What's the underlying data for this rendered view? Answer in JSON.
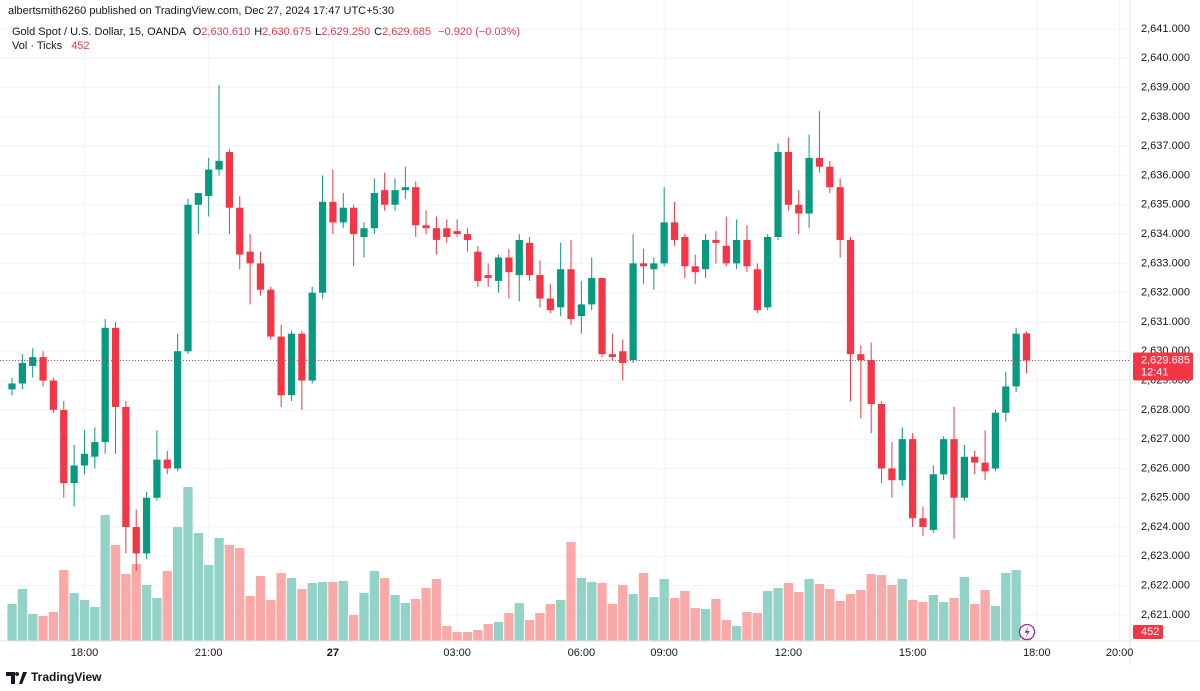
{
  "header": {
    "text": "albertsmith6260 published on TradingView.com, Dec 27, 2024 17:47 UTC+5:30"
  },
  "footer": {
    "brand": "TradingView"
  },
  "chart_data": {
    "type": "candlestick",
    "symbol": "Gold Spot / U.S. Dollar, 15, OANDA",
    "legend": [
      {
        "key": "O",
        "value": "2,630.610"
      },
      {
        "key": "H",
        "value": "2,630.675"
      },
      {
        "key": "L",
        "value": "2,629.250"
      },
      {
        "key": "C",
        "value": "2,629.685"
      }
    ],
    "change": "−0.920 (−0.03%)",
    "volume_title": "Vol · Ticks",
    "up_color": "#089981",
    "down_color": "#f23645",
    "volume_up_color": "#92d2c7",
    "volume_down_color": "#f8a9a8",
    "open": [
      2628.7,
      2628.9,
      2629.5,
      2629.8,
      2629.0,
      2628.0,
      2625.5,
      2626.1,
      2626.4,
      2626.9,
      2630.8,
      2628.1,
      2624.0,
      2623.1,
      2625.0,
      2626.3,
      2626.0,
      2630.0,
      2635.0,
      2635.3,
      2636.2,
      2636.8,
      2634.9,
      2633.4,
      2633.0,
      2632.1,
      2630.5,
      2628.5,
      2630.6,
      2629.0,
      2632.0,
      2635.1,
      2634.4,
      2634.9,
      2633.9,
      2634.2,
      2635.5,
      2635.0,
      2635.5,
      2635.6,
      2634.3,
      2634.2,
      2634.2,
      2634.1,
      2634.0,
      2633.4,
      2632.6,
      2632.4,
      2633.2,
      2632.6,
      2633.7,
      2632.6,
      2631.8,
      2631.5,
      2632.8,
      2631.2,
      2631.6,
      2632.5,
      2629.9,
      2630.0,
      2629.7,
      2633.0,
      2632.8,
      2633.0,
      2634.4,
      2633.9,
      2632.9,
      2632.8,
      2633.8,
      2633.6,
      2633.0,
      2633.8,
      2632.8,
      2631.5,
      2633.9,
      2636.8,
      2635.0,
      2634.7,
      2636.6,
      2636.3,
      2635.6,
      2633.8,
      2629.9,
      2629.7,
      2628.2,
      2626.0,
      2625.6,
      2627.0,
      2624.3,
      2623.9,
      2625.8,
      2627.0,
      2625.0,
      2626.4,
      2626.2,
      2626.0,
      2627.9,
      2628.8,
      2630.61
    ],
    "high": [
      2629.1,
      2629.9,
      2630.1,
      2630.0,
      2629.1,
      2628.3,
      2626.8,
      2627.3,
      2627.4,
      2631.1,
      2631.0,
      2628.3,
      2624.6,
      2625.2,
      2627.3,
      2626.6,
      2630.6,
      2635.2,
      2635.4,
      2636.6,
      2639.1,
      2636.9,
      2635.3,
      2634.0,
      2633.4,
      2632.2,
      2630.9,
      2630.7,
      2630.7,
      2632.2,
      2636.0,
      2636.2,
      2635.4,
      2635.0,
      2634.4,
      2635.9,
      2636.1,
      2635.9,
      2636.3,
      2635.8,
      2634.8,
      2634.6,
      2634.5,
      2634.5,
      2634.2,
      2633.6,
      2633.0,
      2633.3,
      2633.5,
      2634.0,
      2633.9,
      2633.1,
      2632.3,
      2633.7,
      2633.8,
      2632.4,
      2633.2,
      2632.5,
      2630.6,
      2630.4,
      2634.0,
      2633.5,
      2633.2,
      2635.6,
      2635.1,
      2634.0,
      2633.3,
      2634.0,
      2634.1,
      2634.6,
      2634.5,
      2634.3,
      2633.0,
      2634.0,
      2637.1,
      2637.3,
      2635.5,
      2637.4,
      2638.2,
      2636.5,
      2635.9,
      2633.9,
      2630.2,
      2630.3,
      2628.3,
      2626.9,
      2627.4,
      2627.2,
      2624.7,
      2626.1,
      2627.1,
      2628.1,
      2626.8,
      2626.6,
      2627.3,
      2628.0,
      2629.3,
      2630.8,
      2630.675
    ],
    "low": [
      2628.5,
      2628.7,
      2629.1,
      2628.8,
      2627.9,
      2625.0,
      2624.7,
      2625.8,
      2626.0,
      2626.5,
      2626.5,
      2623.1,
      2622.5,
      2622.9,
      2624.9,
      2625.8,
      2625.9,
      2629.9,
      2634.0,
      2634.6,
      2636.0,
      2634.0,
      2632.8,
      2631.6,
      2631.9,
      2630.4,
      2628.1,
      2628.3,
      2628.0,
      2628.9,
      2631.8,
      2634.0,
      2634.2,
      2632.9,
      2633.2,
      2634.0,
      2634.8,
      2634.8,
      2635.2,
      2633.9,
      2634.0,
      2633.3,
      2633.7,
      2633.9,
      2633.4,
      2632.2,
      2632.2,
      2632.0,
      2631.8,
      2631.7,
      2632.4,
      2631.5,
      2631.3,
      2631.2,
      2630.9,
      2630.6,
      2631.4,
      2629.8,
      2629.7,
      2629.0,
      2629.6,
      2632.3,
      2632.1,
      2632.9,
      2633.6,
      2632.5,
      2632.3,
      2632.5,
      2633.0,
      2632.9,
      2632.8,
      2632.7,
      2631.3,
      2631.4,
      2633.8,
      2634.8,
      2634.0,
      2634.2,
      2636.1,
      2635.4,
      2633.2,
      2628.3,
      2627.7,
      2627.2,
      2625.5,
      2625.0,
      2625.4,
      2624.0,
      2623.7,
      2623.8,
      2625.6,
      2623.6,
      2624.9,
      2625.8,
      2625.6,
      2625.9,
      2627.6,
      2628.6,
      2629.25
    ],
    "close": [
      2628.9,
      2629.6,
      2629.8,
      2629.0,
      2628.0,
      2625.5,
      2626.1,
      2626.5,
      2626.9,
      2630.8,
      2628.1,
      2624.0,
      2623.1,
      2625.0,
      2626.3,
      2626.0,
      2630.0,
      2635.0,
      2635.4,
      2636.2,
      2636.5,
      2634.9,
      2633.3,
      2633.0,
      2632.1,
      2630.5,
      2628.5,
      2630.6,
      2629.0,
      2632.0,
      2635.1,
      2634.4,
      2634.9,
      2634.0,
      2634.2,
      2635.4,
      2635.0,
      2635.5,
      2635.6,
      2634.3,
      2634.2,
      2633.8,
      2633.9,
      2634.0,
      2633.8,
      2632.4,
      2632.5,
      2633.2,
      2632.7,
      2633.8,
      2632.6,
      2631.8,
      2631.4,
      2632.8,
      2631.1,
      2631.6,
      2632.5,
      2629.9,
      2629.8,
      2629.6,
      2633.0,
      2632.9,
      2633.0,
      2634.4,
      2633.8,
      2632.9,
      2632.7,
      2633.8,
      2633.7,
      2633.0,
      2633.8,
      2632.9,
      2631.4,
      2633.9,
      2636.8,
      2635.0,
      2634.7,
      2636.6,
      2636.3,
      2635.6,
      2633.8,
      2629.9,
      2629.7,
      2628.2,
      2626.0,
      2625.6,
      2627.0,
      2624.3,
      2624.0,
      2625.8,
      2627.0,
      2625.0,
      2626.4,
      2626.2,
      2625.9,
      2627.9,
      2628.8,
      2630.6,
      2629.685
    ],
    "volume": [
      1850,
      2600,
      1350,
      1250,
      1450,
      3550,
      2400,
      2050,
      1700,
      6300,
      4800,
      3350,
      3850,
      2800,
      2150,
      3500,
      5700,
      7700,
      5400,
      3800,
      5150,
      4800,
      4650,
      2250,
      3250,
      2050,
      3400,
      3150,
      2600,
      2900,
      2950,
      2950,
      3000,
      1300,
      2400,
      3500,
      3150,
      2300,
      1900,
      2100,
      2650,
      3100,
      750,
      450,
      450,
      550,
      850,
      950,
      1400,
      1900,
      1050,
      1400,
      1850,
      2050,
      4950,
      3150,
      2950,
      2900,
      1850,
      2800,
      2350,
      3400,
      2200,
      3100,
      2150,
      2500,
      1650,
      1600,
      2100,
      1050,
      750,
      1450,
      1400,
      2500,
      2650,
      2900,
      2450,
      3100,
      2850,
      2600,
      2000,
      2350,
      2550,
      3350,
      3300,
      2800,
      3100,
      2050,
      1950,
      2300,
      1950,
      2150,
      3200,
      1850,
      2550,
      1750,
      3400,
      3550,
      452
    ],
    "xlim": [
      -1.16,
      108.0
    ],
    "xticks": [
      {
        "value": 7,
        "label": "18:00"
      },
      {
        "value": 19,
        "label": "21:00"
      },
      {
        "value": 31,
        "label": "27"
      },
      {
        "value": 43,
        "label": "03:00"
      },
      {
        "value": 55,
        "label": "06:00"
      },
      {
        "value": 63,
        "label": "09:00"
      },
      {
        "value": 75,
        "label": "12:00"
      },
      {
        "value": 87,
        "label": "15:00"
      },
      {
        "value": 99,
        "label": "18:00"
      },
      {
        "value": 107,
        "label": "20:00"
      }
    ],
    "ylim": [
      2620.11,
      2641.99
    ],
    "yticks": [
      {
        "value": 2621,
        "label": "2,621.000"
      },
      {
        "value": 2622,
        "label": "2,622.000"
      },
      {
        "value": 2623,
        "label": "2,623.000"
      },
      {
        "value": 2624,
        "label": "2,624.000"
      },
      {
        "value": 2625,
        "label": "2,625.000"
      },
      {
        "value": 2626,
        "label": "2,626.000"
      },
      {
        "value": 2627,
        "label": "2,627.000"
      },
      {
        "value": 2628,
        "label": "2,628.000"
      },
      {
        "value": 2629,
        "label": "2,629.000"
      },
      {
        "value": 2630,
        "label": "2,630.000"
      },
      {
        "value": 2631,
        "label": "2,631.000"
      },
      {
        "value": 2632,
        "label": "2,632.000"
      },
      {
        "value": 2633,
        "label": "2,633.000"
      },
      {
        "value": 2634,
        "label": "2,634.000"
      },
      {
        "value": 2635,
        "label": "2,635.000"
      },
      {
        "value": 2636,
        "label": "2,636.000"
      },
      {
        "value": 2637,
        "label": "2,637.000"
      },
      {
        "value": 2638,
        "label": "2,638.000"
      },
      {
        "value": 2639,
        "label": "2,639.000"
      },
      {
        "value": 2640,
        "label": "2,640.000"
      },
      {
        "value": 2641,
        "label": "2,641.000"
      }
    ],
    "volume_ylim": [
      0,
      32050
    ],
    "last_price": {
      "value": 2629.685,
      "label": "2,629.685"
    },
    "countdown": "12:41",
    "grid": true
  }
}
